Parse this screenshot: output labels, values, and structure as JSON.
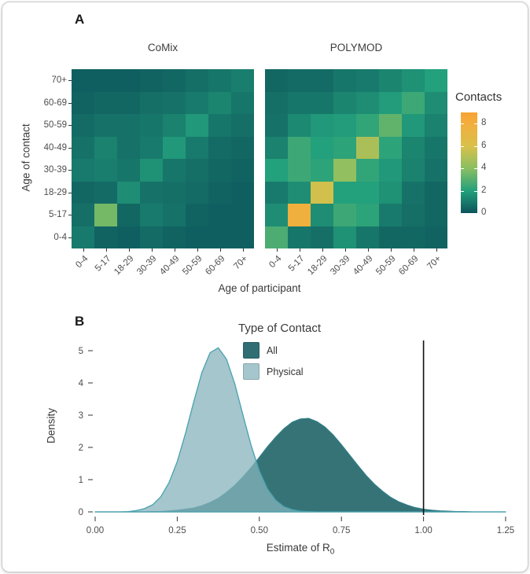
{
  "figure": {
    "panel_a_label": "A",
    "panel_b_label": "B"
  },
  "contacts_legend": {
    "title": "Contacts",
    "tick_values": [
      0,
      2,
      4,
      6,
      8
    ],
    "scale_max": 9,
    "stops": [
      [
        0,
        "#0d545b"
      ],
      [
        2,
        "#23a07c"
      ],
      [
        4,
        "#8abf62"
      ],
      [
        6,
        "#d9c04a"
      ],
      [
        8,
        "#f3ae3d"
      ],
      [
        9,
        "#f6a333"
      ]
    ]
  },
  "chart_data": [
    {
      "type": "heatmap",
      "panel": "A",
      "title": "CoMix",
      "x_label": "Age of participant",
      "y_label": "Age of contact",
      "categories": [
        "0-4",
        "5-17",
        "18-29",
        "30-39",
        "40-49",
        "50-59",
        "60-69",
        "70+"
      ],
      "matrix_note": "rows = age of contact ascending (0-4 bottom), cols = age of participant ascending",
      "matrix": [
        [
          1.0,
          0.4,
          0.3,
          0.6,
          0.4,
          0.3,
          0.3,
          0.3
        ],
        [
          0.7,
          3.6,
          0.5,
          1.0,
          0.8,
          0.4,
          0.3,
          0.3
        ],
        [
          0.5,
          0.6,
          1.5,
          0.8,
          0.7,
          0.6,
          0.4,
          0.3
        ],
        [
          1.0,
          1.1,
          0.9,
          1.6,
          0.9,
          0.7,
          0.5,
          0.4
        ],
        [
          0.8,
          1.2,
          0.8,
          1.0,
          1.8,
          1.0,
          0.6,
          0.5
        ],
        [
          0.6,
          0.8,
          0.8,
          0.9,
          1.2,
          1.8,
          0.9,
          0.7
        ],
        [
          0.4,
          0.5,
          0.5,
          0.7,
          0.8,
          1.0,
          1.3,
          0.9
        ],
        [
          0.3,
          0.3,
          0.3,
          0.4,
          0.5,
          0.7,
          0.9,
          1.1
        ]
      ]
    },
    {
      "type": "heatmap",
      "panel": "A",
      "title": "POLYMOD",
      "x_label": "Age of participant",
      "y_label": "Age of contact",
      "categories": [
        "0-4",
        "5-17",
        "18-29",
        "30-39",
        "40-49",
        "50-59",
        "60-69",
        "70+"
      ],
      "matrix": [
        [
          2.8,
          0.9,
          0.7,
          1.6,
          0.9,
          0.5,
          0.5,
          0.4
        ],
        [
          1.5,
          7.8,
          1.5,
          2.5,
          2.2,
          1.0,
          0.7,
          0.5
        ],
        [
          1.0,
          1.5,
          5.8,
          2.0,
          2.0,
          1.6,
          0.8,
          0.5
        ],
        [
          2.0,
          2.5,
          2.2,
          4.2,
          2.3,
          1.8,
          1.2,
          0.8
        ],
        [
          1.2,
          2.5,
          2.0,
          2.2,
          4.8,
          2.2,
          1.3,
          0.9
        ],
        [
          0.8,
          1.4,
          1.8,
          1.9,
          2.3,
          3.2,
          1.8,
          1.2
        ],
        [
          0.7,
          0.9,
          0.9,
          1.3,
          1.5,
          1.9,
          2.5,
          1.5
        ],
        [
          0.5,
          0.6,
          0.6,
          0.9,
          1.0,
          1.3,
          1.6,
          2.0
        ]
      ]
    },
    {
      "type": "area",
      "panel": "B",
      "subtype": "density",
      "x_label": "Estimate of R",
      "x_label_sub": "0",
      "y_label": "Density",
      "x_ticks": [
        "0.00",
        "0.25",
        "0.50",
        "0.75",
        "1.00",
        "1.25"
      ],
      "y_ticks": [
        "0",
        "1",
        "2",
        "3",
        "4",
        "5"
      ],
      "xlim": [
        0,
        1.25
      ],
      "ylim": [
        0,
        5.2
      ],
      "vline_x": 1.0,
      "legend": {
        "title": "Type of Contact",
        "position": "top-center-inside",
        "items": [
          {
            "label": "All",
            "color": "#306e73"
          },
          {
            "label": "Physical",
            "color": "#a4c6cc"
          }
        ]
      },
      "x": [
        0,
        0.025,
        0.05,
        0.075,
        0.1,
        0.125,
        0.15,
        0.175,
        0.2,
        0.225,
        0.25,
        0.275,
        0.3,
        0.325,
        0.35,
        0.375,
        0.4,
        0.425,
        0.45,
        0.475,
        0.5,
        0.525,
        0.55,
        0.575,
        0.6,
        0.625,
        0.65,
        0.675,
        0.7,
        0.725,
        0.75,
        0.775,
        0.8,
        0.825,
        0.85,
        0.875,
        0.9,
        0.925,
        0.95,
        0.975,
        1.0,
        1.025,
        1.05,
        1.075,
        1.1,
        1.125,
        1.15,
        1.175,
        1.2,
        1.225,
        1.25
      ],
      "series": [
        {
          "name": "All",
          "fill": "#306e73",
          "stroke": "#2f7d87",
          "opacity": 0.97,
          "peak_x": 0.64,
          "peak_density": 2.9,
          "values": [
            0,
            0,
            0,
            0,
            0,
            0,
            0,
            0.01,
            0.01,
            0.03,
            0.05,
            0.08,
            0.12,
            0.19,
            0.29,
            0.42,
            0.6,
            0.82,
            1.08,
            1.37,
            1.69,
            2.02,
            2.32,
            2.58,
            2.78,
            2.88,
            2.9,
            2.8,
            2.63,
            2.38,
            2.08,
            1.76,
            1.44,
            1.13,
            0.86,
            0.64,
            0.45,
            0.31,
            0.21,
            0.13,
            0.08,
            0.05,
            0.03,
            0.02,
            0.01,
            0.01,
            0,
            0,
            0,
            0,
            0
          ]
        },
        {
          "name": "Physical",
          "fill": "#86b3bb",
          "stroke": "#49a2af",
          "opacity": 0.75,
          "peak_x": 0.37,
          "peak_density": 5.1,
          "values": [
            0,
            0,
            0,
            0,
            0.01,
            0.04,
            0.1,
            0.22,
            0.47,
            0.91,
            1.56,
            2.43,
            3.41,
            4.32,
            4.94,
            5.09,
            4.74,
            3.98,
            3.01,
            2.06,
            1.27,
            0.71,
            0.36,
            0.16,
            0.07,
            0.02,
            0.01,
            0,
            0,
            0,
            0,
            0,
            0,
            0,
            0,
            0,
            0,
            0,
            0,
            0,
            0,
            0,
            0,
            0,
            0,
            0,
            0,
            0,
            0,
            0,
            0
          ]
        }
      ]
    }
  ]
}
